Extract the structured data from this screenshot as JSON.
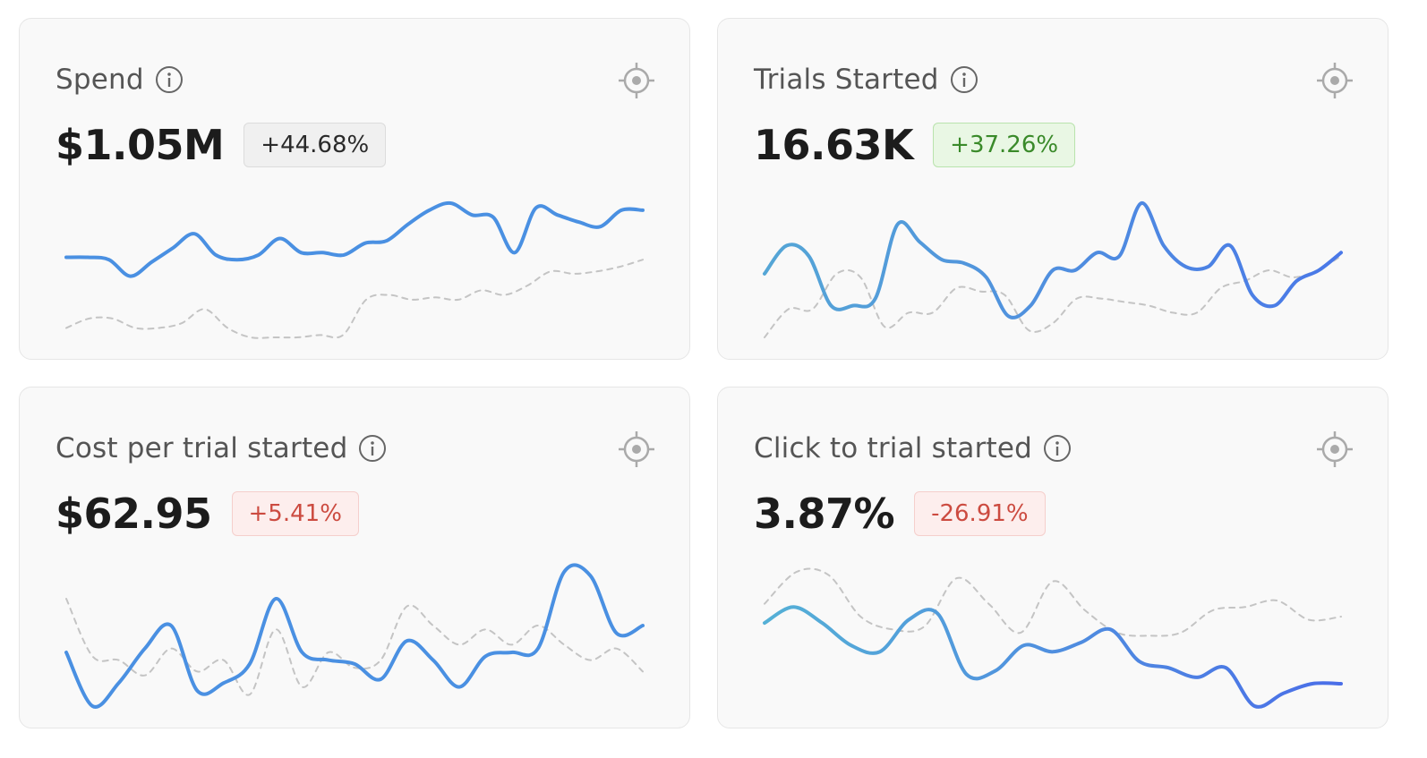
{
  "cards": [
    {
      "title": "Spend",
      "value": "$1.05M",
      "change": "+44.68%",
      "change_tone": "neutral",
      "info_icon": "info-circle-icon",
      "action_icon": "crosshair-target-icon",
      "chart_data": {
        "type": "line",
        "series": [
          {
            "style": "solid",
            "gradient": [
              "#4a90e2",
              "#4a90e2"
            ],
            "values": [
              30,
              30,
              29.5,
              26,
              29,
              32,
              35,
              30.5,
              29.5,
              30.5,
              34,
              31,
              31,
              30.5,
              33,
              33.5,
              37,
              40,
              41.5,
              39,
              38.5,
              31,
              40.5,
              39,
              37.5,
              36.5,
              40,
              40
            ]
          },
          {
            "style": "dashed",
            "color": "#c4c4c4",
            "values": [
              15,
              17,
              17,
              15,
              15,
              16,
              19,
              15,
              13,
              13,
              13,
              13.5,
              13.5,
              21,
              22,
              21,
              21.5,
              21,
              23,
              22,
              24,
              27,
              26.5,
              27,
              28,
              29.5
            ]
          }
        ]
      }
    },
    {
      "title": "Trials Started",
      "value": "16.63K",
      "change": "+37.26%",
      "change_tone": "positive",
      "info_icon": "info-circle-icon",
      "action_icon": "crosshair-target-icon",
      "chart_data": {
        "type": "line",
        "series": [
          {
            "style": "solid",
            "gradient": [
              "#55a6d6",
              "#4a78e8"
            ],
            "values": [
              28,
              36,
              33,
              19,
              19,
              21,
              42,
              37,
              32,
              31,
              27,
              16,
              19,
              29,
              29,
              34,
              33,
              48,
              36,
              30,
              30,
              36,
              22,
              19,
              26,
              29,
              34
            ]
          },
          {
            "style": "dashed",
            "color": "#c4c4c4",
            "values": [
              10,
              18,
              18,
              28,
              27,
              13,
              17,
              17,
              24,
              23,
              22,
              12,
              14,
              21,
              21,
              20,
              19,
              17,
              17,
              24,
              26,
              29,
              27,
              29,
              33
            ]
          }
        ]
      }
    },
    {
      "title": "Cost per trial started",
      "value": "$62.95",
      "change": "+5.41%",
      "change_tone": "negative",
      "info_icon": "info-circle-icon",
      "action_icon": "crosshair-target-icon",
      "chart_data": {
        "type": "line",
        "series": [
          {
            "style": "solid",
            "gradient": [
              "#4a90e2",
              "#4a90e2"
            ],
            "values": [
              19,
              5,
              11,
              20,
              26,
              9,
              11,
              16,
              33,
              19,
              17,
              16,
              12,
              22,
              17,
              10,
              18,
              19,
              20,
              40,
              39,
              24,
              26
            ]
          },
          {
            "style": "dashed",
            "color": "#c4c4c4",
            "values": [
              33,
              18,
              17,
              13,
              20,
              14,
              17,
              8,
              25,
              10,
              19,
              15,
              17,
              31,
              26,
              21,
              25,
              21,
              26,
              21,
              17,
              20,
              14
            ]
          }
        ]
      }
    },
    {
      "title": "Click to trial started",
      "value": "3.87%",
      "change": "-26.91%",
      "change_tone": "negative",
      "info_icon": "info-circle-icon",
      "action_icon": "crosshair-target-icon",
      "chart_data": {
        "type": "line",
        "series": [
          {
            "style": "solid",
            "gradient": [
              "#55b0d6",
              "#4a6ee8"
            ],
            "values": [
              34,
              39,
              34,
              27,
              25,
              35,
              37,
              18,
              19,
              27,
              25,
              28,
              32,
              22,
              20,
              17,
              20,
              8,
              12,
              15,
              15
            ]
          },
          {
            "style": "dashed",
            "color": "#c4c4c4",
            "values": [
              40,
              50,
              49,
              36,
              32,
              33,
              48,
              40,
              31,
              47,
              38,
              31,
              30,
              31,
              38,
              39,
              41,
              35,
              36
            ]
          }
        ]
      }
    }
  ]
}
